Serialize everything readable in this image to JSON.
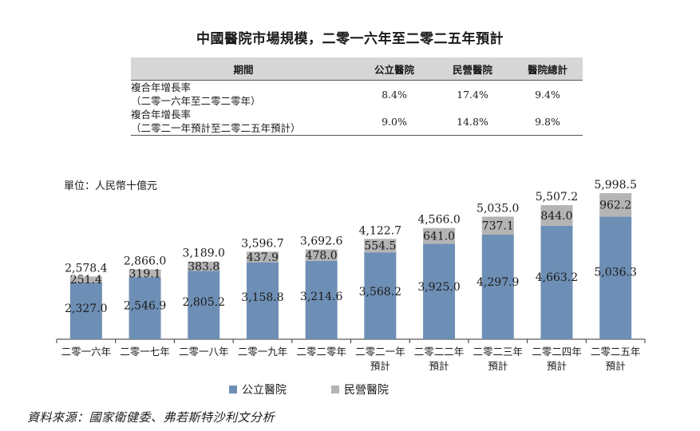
{
  "title": "中國醫院市場規模，二零一六年至二零二五年預計",
  "cagr_table": {
    "headers": [
      "期間",
      "公立醫院",
      "民營醫院",
      "醫院總計"
    ],
    "rows": [
      {
        "period_line1": "複合年增長率",
        "period_line2": "（二零一六年至二零二零年）",
        "public": "8.4%",
        "private": "17.4%",
        "total": "9.4%"
      },
      {
        "period_line1": "複合年增長率",
        "period_line2": "（二零二一年預計至二零二五年預計）",
        "public": "9.0%",
        "private": "14.8%",
        "total": "9.8%"
      }
    ]
  },
  "unit_label": "單位：人民幣十億元",
  "colors": {
    "public": "#6e8fb5",
    "private": "#b4b4b4"
  },
  "chart_data": {
    "type": "bar",
    "stacked": true,
    "categories": [
      [
        "二零一六年"
      ],
      [
        "二零一七年"
      ],
      [
        "二零一八年"
      ],
      [
        "二零一九年"
      ],
      [
        "二零二零年"
      ],
      [
        "二零二一年",
        "預計"
      ],
      [
        "二零二二年",
        "預計"
      ],
      [
        "二零二三年",
        "預計"
      ],
      [
        "二零二四年",
        "預計"
      ],
      [
        "二零二五年",
        "預計"
      ]
    ],
    "series": [
      {
        "name": "公立醫院",
        "values": [
          2327.0,
          2546.9,
          2805.2,
          3158.8,
          3214.6,
          3568.2,
          3925.0,
          4297.9,
          4663.2,
          5036.3
        ],
        "labels": [
          "2,327.0",
          "2,546.9",
          "2,805.2",
          "3,158.8",
          "3,214.6",
          "3,568.2",
          "3,925.0",
          "4,297.9",
          "4,663.2",
          "5,036.3"
        ]
      },
      {
        "name": "民營醫院",
        "values": [
          251.4,
          319.1,
          383.8,
          437.9,
          478.0,
          554.5,
          641.0,
          737.1,
          844.0,
          962.2
        ],
        "labels": [
          "251.4",
          "319.1",
          "383.8",
          "437.9",
          "478.0",
          "554.5",
          "641.0",
          "737.1",
          "844.0",
          "962.2"
        ]
      }
    ],
    "totals": [
      2578.4,
      2866.0,
      3189.0,
      3596.7,
      3692.6,
      4122.7,
      4566.0,
      5035.0,
      5507.2,
      5998.5
    ],
    "total_labels": [
      "2,578.4",
      "2,866.0",
      "3,189.0",
      "3,596.7",
      "3,692.6",
      "4,122.7",
      "4,566.0",
      "5,035.0",
      "5,507.2",
      "5,998.5"
    ],
    "legend_position": "bottom"
  },
  "legend": {
    "public": "公立醫院",
    "private": "民營醫院"
  },
  "source": "資料來源：國家衛健委、弗若斯特沙利文分析"
}
